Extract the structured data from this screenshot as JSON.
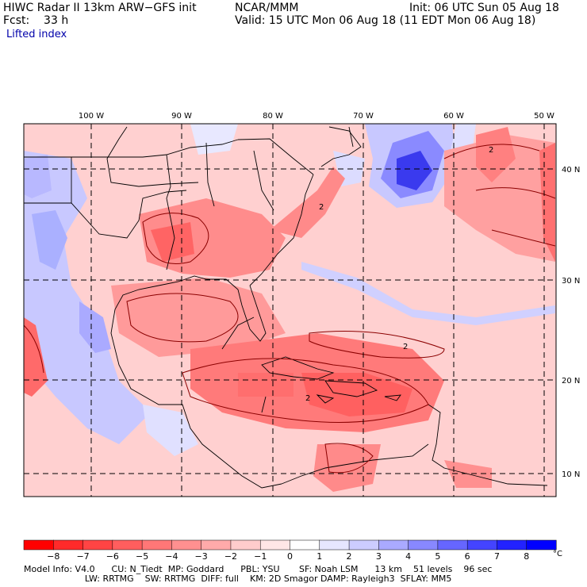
{
  "header": {
    "left1": "HIWC Radar II 13km ARW−GFS init",
    "left2": "Fcst:    33 h",
    "center1": "NCAR/MMM",
    "right1": "Init: 06 UTC Sun 05 Aug 18",
    "right2": "Valid: 15 UTC Mon 06 Aug 18 (11 EDT Mon 06 Aug 18)",
    "field": "Lifted index"
  },
  "map": {
    "lon_labels": [
      "100 W",
      "90 W",
      "80 W",
      "70 W",
      "60 W",
      "50 W"
    ],
    "lat_labels": [
      "40 N",
      "30 N",
      "20 N",
      "10 N"
    ],
    "contour_labels": [
      "2",
      "2",
      "2",
      "2"
    ]
  },
  "colorbar": {
    "labels": [
      "−8",
      "−7",
      "−6",
      "−5",
      "−4",
      "−3",
      "−2",
      "−1",
      "0",
      "1",
      "2",
      "3",
      "4",
      "5",
      "6",
      "7",
      "8"
    ],
    "unit": "°C",
    "colors": [
      "#ff0000",
      "#ff2a2a",
      "#ff4444",
      "#ff5e5e",
      "#ff7777",
      "#ff9090",
      "#ffaaaa",
      "#ffcccc",
      "#ffe6e6",
      "#ffffff",
      "#e6e6ff",
      "#ccccff",
      "#aaaaff",
      "#8888ff",
      "#6666ff",
      "#4444ff",
      "#2222ff",
      "#0000ff"
    ]
  },
  "footer": {
    "line1": "Model Info: V4.0      CU: N_Tiedt  MP: Goddard      PBL: YSU       SF: Noah LSM      13 km    51 levels    96 sec",
    "line2": "                      LW: RRTMG    SW: RRTMG  DIFF: full    KM: 2D Smagor DAMP: Rayleigh3  SFLAY: MM5"
  }
}
